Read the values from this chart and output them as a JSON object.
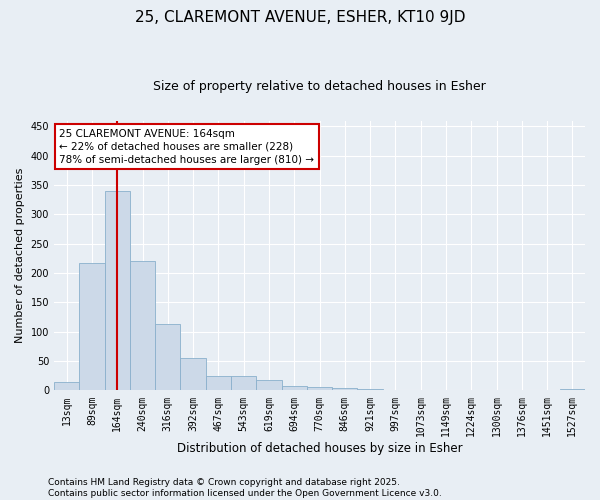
{
  "title1": "25, CLAREMONT AVENUE, ESHER, KT10 9JD",
  "title2": "Size of property relative to detached houses in Esher",
  "xlabel": "Distribution of detached houses by size in Esher",
  "ylabel": "Number of detached properties",
  "categories": [
    "13sqm",
    "89sqm",
    "164sqm",
    "240sqm",
    "316sqm",
    "392sqm",
    "467sqm",
    "543sqm",
    "619sqm",
    "694sqm",
    "770sqm",
    "846sqm",
    "921sqm",
    "997sqm",
    "1073sqm",
    "1149sqm",
    "1224sqm",
    "1300sqm",
    "1376sqm",
    "1451sqm",
    "1527sqm"
  ],
  "values": [
    15,
    217,
    340,
    220,
    113,
    55,
    25,
    25,
    17,
    8,
    6,
    5,
    2,
    1,
    1,
    0,
    0,
    0,
    0,
    0,
    2
  ],
  "bar_color": "#ccd9e8",
  "bar_edge_color": "#8ab0cc",
  "vline_x_idx": 2,
  "vline_color": "#cc0000",
  "annotation_text": "25 CLAREMONT AVENUE: 164sqm\n← 22% of detached houses are smaller (228)\n78% of semi-detached houses are larger (810) →",
  "annotation_box_color": "#ffffff",
  "annotation_box_edge": "#cc0000",
  "ylim": [
    0,
    460
  ],
  "yticks": [
    0,
    50,
    100,
    150,
    200,
    250,
    300,
    350,
    400,
    450
  ],
  "bg_color": "#e8eef4",
  "grid_color": "#ffffff",
  "footnote1": "Contains HM Land Registry data © Crown copyright and database right 2025.",
  "footnote2": "Contains public sector information licensed under the Open Government Licence v3.0."
}
